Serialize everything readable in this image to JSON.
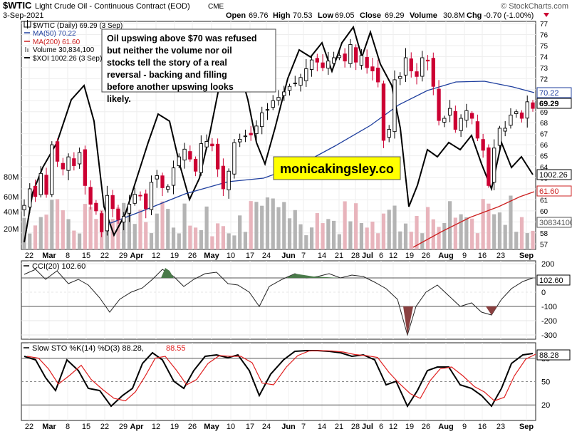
{
  "header": {
    "symbol": "$WTIC",
    "name": "Light Crude Oil - Continuous Contract (EOD)",
    "exchange": "CME",
    "date": "3-Sep-2021",
    "open_label": "Open",
    "open": "69.76",
    "high_label": "High",
    "high": "70.53",
    "low_label": "Low",
    "low": "69.05",
    "close_label": "Close",
    "close": "69.29",
    "volume_label": "Volume",
    "volume": "30.8M",
    "chg_label": "Chg",
    "chg": "-0.70 (-1.00%)",
    "watermark": "© StockCharts.com"
  },
  "legend": {
    "wtic": "$WTIC (Daily) 69.29 (3 Sep)",
    "ma50": "MA(50) 70.22",
    "ma200": "MA(200) 61.60",
    "volume": "Volume 30,834,100",
    "xoi": "$XOI 1002.26 (3 Sep)"
  },
  "annotation": "Oil upswing above $70 was refused but neither the volume nor oil stocks tell the story of a real reversal - backing and filling before another upswing looks likely.",
  "brand_label": "monicakingsley.co",
  "colors": {
    "up": "#000000",
    "down": "#cc0033",
    "ma50": "#1f3f9e",
    "ma200": "#cc2020",
    "vol_up": "#b4b4b4",
    "vol_down": "#e8b4bc",
    "cci_pos": "#4a7a4a",
    "cci_neg": "#8a4040",
    "k_line": "#000000",
    "d_line": "#e02020",
    "brand_bg": "#ffff00"
  },
  "chart_data": [
    {
      "type": "candlestick",
      "title": "$WTIC (Daily) 69.29 (3 Sep)",
      "y_axis": {
        "ylim": [
          56.5,
          77.2
        ],
        "ticks": [
          "57",
          "58",
          "59",
          "60",
          "61",
          "62",
          "63",
          "64",
          "65",
          "66",
          "67",
          "68",
          "69",
          "70",
          "71",
          "72",
          "73",
          "74",
          "75",
          "76",
          "77"
        ]
      },
      "x_axis": {
        "ticks": [
          "22",
          "Mar",
          "8",
          "15",
          "22",
          "29",
          "Apr",
          "12",
          "19",
          "26",
          "May",
          "10",
          "17",
          "24",
          "Jun",
          "7",
          "14",
          "21",
          "28",
          "Jul",
          "6",
          "12",
          "19",
          "26",
          "Aug",
          "9",
          "16",
          "23",
          "Sep"
        ]
      },
      "price_close_trail": [
        60.5,
        62.0,
        61.3,
        63.4,
        61.5,
        66.0,
        64.5,
        63.8,
        64.9,
        64.1,
        65.3,
        62.3,
        60.6,
        60.0,
        58.1,
        61.4,
        60.2,
        59.2,
        59.5,
        60.6,
        61.5,
        61.4,
        60.2,
        62.6,
        63.2,
        62.1,
        62.2,
        63.9,
        64.9,
        65.6,
        64.7,
        63.6,
        66.1,
        66.3,
        65.9,
        63.8,
        62.0,
        63.6,
        66.2,
        66.5,
        66.8,
        66.9,
        67.7,
        68.9,
        69.2,
        70.0,
        70.3,
        70.8,
        71.3,
        71.6,
        72.1,
        72.9,
        73.7,
        73.5,
        73.0,
        73.6,
        73.9,
        74.1,
        73.6,
        75.1,
        73.5,
        74.1,
        73.0,
        72.7,
        71.7,
        66.4,
        67.4,
        71.9,
        72.2,
        73.9,
        72.7,
        72.2,
        73.9,
        73.6,
        71.3,
        68.2,
        68.4,
        69.3,
        67.4,
        68.4,
        69.1,
        68.4,
        66.6,
        65.5,
        62.3,
        65.7,
        67.5,
        67.5,
        68.7,
        69.0,
        68.4,
        69.9,
        69.3
      ],
      "annotations": [
        "70.22 (MA50)",
        "69.29 (last)",
        "1002.26 ($XOI)",
        "61.60 (MA200)",
        "30834100 (volume)"
      ],
      "volume_axis": [
        "20M",
        "40M",
        "60M",
        "80M"
      ]
    },
    {
      "type": "line",
      "title": "CCI(20) 102.60",
      "series": [
        {
          "name": "CCI(20)",
          "last": 102.6
        }
      ],
      "y_ticks": [
        "200",
        "100",
        "0",
        "-100",
        "-200",
        "-300"
      ],
      "last_value": "102.60"
    },
    {
      "type": "line",
      "title": "Slow STO %K(14) %D(3) 88.28, 88.55",
      "labels": {
        "prefix": "Slow STO %K(14) %D(3)",
        "k": "88.28",
        "d": "88.55"
      },
      "series": [
        {
          "name": "%K(14)",
          "last": 88.28
        },
        {
          "name": "%D(3)",
          "last": 88.55
        }
      ],
      "y_ticks": [
        "80",
        "50",
        "20"
      ],
      "last_value": "88.28"
    }
  ]
}
